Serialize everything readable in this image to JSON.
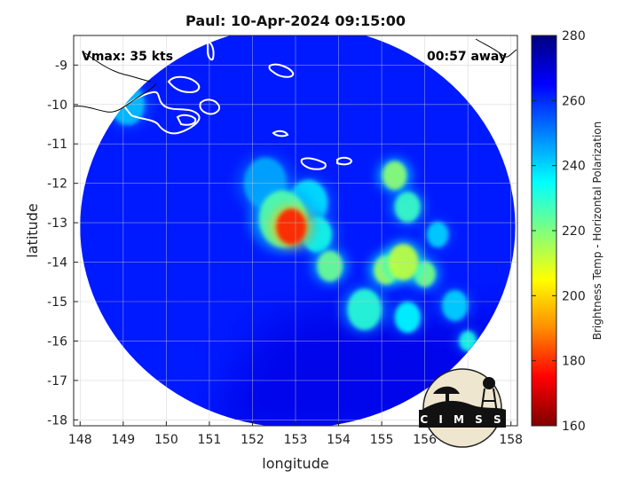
{
  "chart_data": {
    "type": "heatmap",
    "title": "Paul: 10-Apr-2024 09:15:00",
    "xlabel": "longitude",
    "ylabel": "latitude",
    "xlim": [
      147.85,
      158.15
    ],
    "ylim": [
      -18.15,
      -8.25
    ],
    "xticks": [
      148,
      149,
      150,
      151,
      152,
      153,
      154,
      155,
      156,
      157,
      158
    ],
    "yticks": [
      -9,
      -10,
      -11,
      -12,
      -13,
      -14,
      -15,
      -16,
      -17,
      -18
    ],
    "grid": true,
    "colorbar": {
      "label": "Brightness Temp - Horizontal Polarization",
      "range": [
        160,
        280
      ],
      "ticks": [
        160,
        180,
        200,
        220,
        240,
        260,
        280
      ]
    },
    "swath": {
      "center_lon": 153.05,
      "center_lat": -13.1,
      "radius_lon": 5.05,
      "radius_lat": 5.1
    },
    "background_temp": 262,
    "cold_features": [
      {
        "lon": 152.9,
        "lat": -13.1,
        "temp": 178,
        "size": 0.35
      },
      {
        "lon": 152.7,
        "lat": -12.9,
        "temp": 225,
        "size": 0.55
      },
      {
        "lon": 153.3,
        "lat": -12.5,
        "temp": 238,
        "size": 0.45
      },
      {
        "lon": 153.5,
        "lat": -13.3,
        "temp": 232,
        "size": 0.35
      },
      {
        "lon": 153.8,
        "lat": -14.1,
        "temp": 222,
        "size": 0.3
      },
      {
        "lon": 155.3,
        "lat": -11.8,
        "temp": 218,
        "size": 0.28
      },
      {
        "lon": 155.6,
        "lat": -12.6,
        "temp": 228,
        "size": 0.3
      },
      {
        "lon": 155.1,
        "lat": -14.2,
        "temp": 215,
        "size": 0.28
      },
      {
        "lon": 155.5,
        "lat": -14.0,
        "temp": 212,
        "size": 0.35
      },
      {
        "lon": 156.0,
        "lat": -14.3,
        "temp": 220,
        "size": 0.25
      },
      {
        "lon": 154.6,
        "lat": -15.2,
        "temp": 230,
        "size": 0.4
      },
      {
        "lon": 155.6,
        "lat": -15.4,
        "temp": 235,
        "size": 0.3
      },
      {
        "lon": 156.7,
        "lat": -15.1,
        "temp": 240,
        "size": 0.3
      },
      {
        "lon": 157.0,
        "lat": -16.0,
        "temp": 232,
        "size": 0.2
      },
      {
        "lon": 149.1,
        "lat": -10.0,
        "temp": 242,
        "size": 0.4
      },
      {
        "lon": 156.3,
        "lat": -13.3,
        "temp": 240,
        "size": 0.25
      },
      {
        "lon": 152.3,
        "lat": -12.0,
        "temp": 245,
        "size": 0.5
      }
    ],
    "warm_region_temp": 268,
    "colors": {
      "colormap": [
        "#7f0000",
        "#ff0000",
        "#ff8c00",
        "#ffff00",
        "#7fff7f",
        "#00ffff",
        "#0080ff",
        "#0000ff",
        "#00007f"
      ],
      "outside": "#ffffff",
      "coast": "#ffffff",
      "land": "#000000"
    }
  },
  "annotations": {
    "vmax": "Vmax: 35 kts",
    "time_away": "00:57 away",
    "logo_text": "C I M S S"
  }
}
